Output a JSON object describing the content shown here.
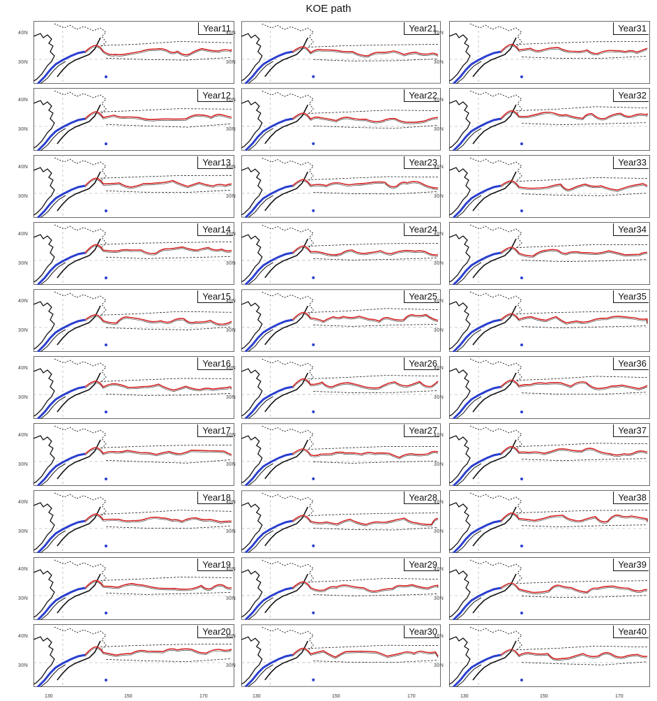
{
  "title": "KOE path",
  "columns": [
    [
      "Year11",
      "Year12",
      "Year13",
      "Year14",
      "Year15",
      "Year16",
      "Year17",
      "Year18",
      "Year19",
      "Year20"
    ],
    [
      "Year21",
      "Year22",
      "Year23",
      "Year24",
      "Year25",
      "Year26",
      "Year27",
      "Year28",
      "Year29",
      "Year30"
    ],
    [
      "Year31",
      "Year32",
      "Year33",
      "Year34",
      "Year35",
      "Year36",
      "Year37",
      "Year38",
      "Year39",
      "Year40"
    ]
  ],
  "y_tick_labels": [
    "40N",
    "30N"
  ],
  "x_tick_labels": [
    "130",
    "150",
    "170"
  ],
  "colors": {
    "coast": "#111111",
    "path_blue": "#2a3fcf",
    "path_red": "#d42222",
    "contour": "#222222"
  }
}
